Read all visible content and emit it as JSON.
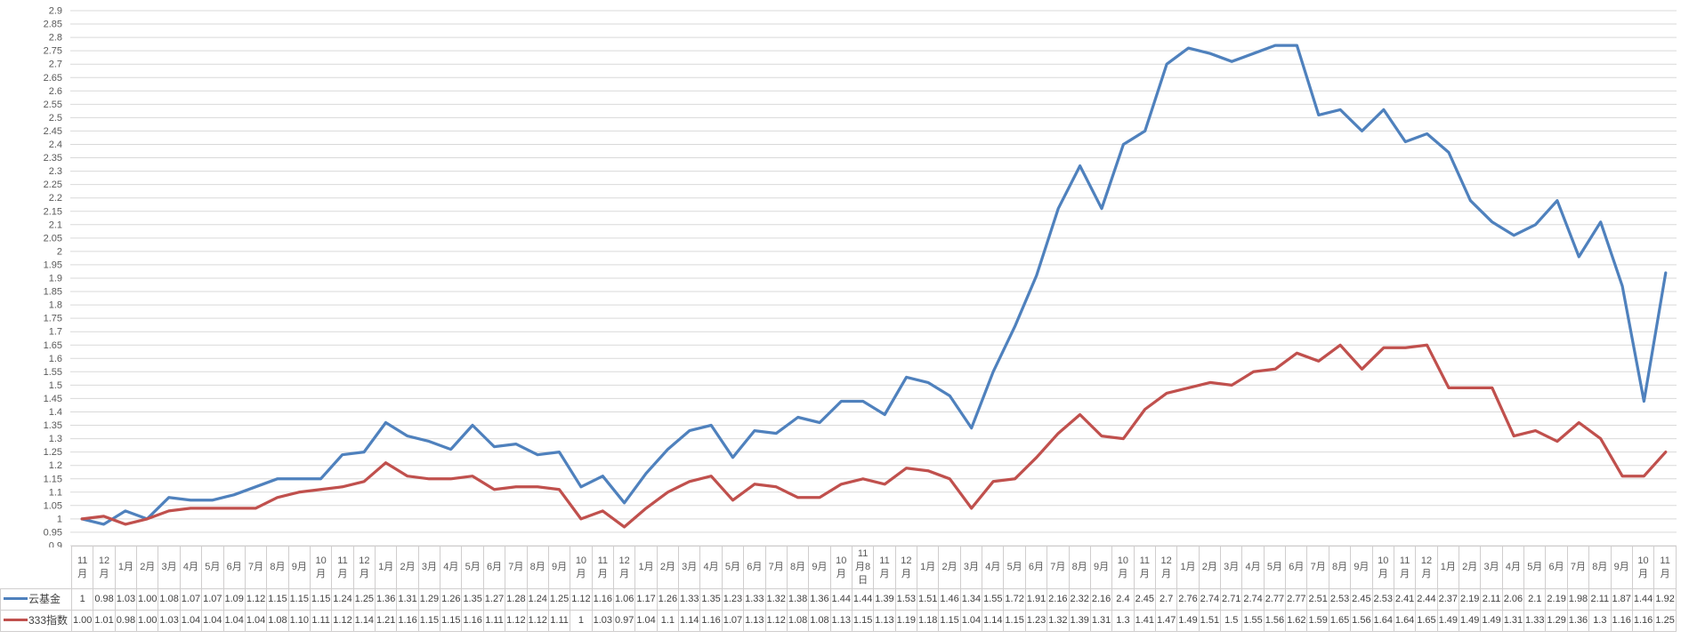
{
  "chart_data": {
    "type": "line",
    "title": "",
    "xlabel": "",
    "ylabel": "",
    "ylim": [
      0.9,
      2.9
    ],
    "ytick_step": 0.05,
    "ytick_labels": [
      "2.9",
      "2.85",
      "2.8",
      "2.75",
      "2.7",
      "2.65",
      "2.6",
      "2.55",
      "2.5",
      "2.45",
      "2.4",
      "2.35",
      "2.3",
      "2.25",
      "2.2",
      "2.15",
      "2.1",
      "2.05",
      "2",
      "1.95",
      "1.9",
      "1.85",
      "1.8",
      "1.75",
      "1.7",
      "1.65",
      "1.6",
      "1.55",
      "1.5",
      "1.45",
      "1.4",
      "1.35",
      "1.3",
      "1.25",
      "1.2",
      "1.15",
      "1.1",
      "1.05",
      "1",
      "0.95",
      "0.9"
    ],
    "grid": "horizontal",
    "grid_color": "#D9D9D9",
    "axis_label_color": "#595959",
    "table_border_color": "#D0CECE",
    "table_text_color": "#404040",
    "legend_position": "data-table-left",
    "categories": [
      "11月",
      "12月",
      "1月",
      "2月",
      "3月",
      "4月",
      "5月",
      "6月",
      "7月",
      "8月",
      "9月",
      "10月",
      "11月",
      "12月",
      "1月",
      "2月",
      "3月",
      "4月",
      "5月",
      "6月",
      "7月",
      "8月",
      "9月",
      "10月",
      "11月",
      "12月",
      "1月",
      "2月",
      "3月",
      "4月",
      "5月",
      "6月",
      "7月",
      "8月",
      "9月",
      "10月",
      "11月8日",
      "11月",
      "12月",
      "1月",
      "2月",
      "3月",
      "4月",
      "5月",
      "6月",
      "7月",
      "8月",
      "9月",
      "10月",
      "11月",
      "12月",
      "1月",
      "2月",
      "3月",
      "4月",
      "5月",
      "6月",
      "7月",
      "8月",
      "9月",
      "10月",
      "11月",
      "12月",
      "1月",
      "2月",
      "3月",
      "4月",
      "5月",
      "6月",
      "7月",
      "8月",
      "9月",
      "10月",
      "11月"
    ],
    "series": [
      {
        "name": "云基金",
        "color": "#4F81BD",
        "values": [
          "1",
          "0.98",
          "1.03",
          "1.00",
          "1.08",
          "1.07",
          "1.07",
          "1.09",
          "1.12",
          "1.15",
          "1.15",
          "1.15",
          "1.24",
          "1.25",
          "1.36",
          "1.31",
          "1.29",
          "1.26",
          "1.35",
          "1.27",
          "1.28",
          "1.24",
          "1.25",
          "1.12",
          "1.16",
          "1.06",
          "1.17",
          "1.26",
          "1.33",
          "1.35",
          "1.23",
          "1.33",
          "1.32",
          "1.38",
          "1.36",
          "1.44",
          "1.44",
          "1.39",
          "1.53",
          "1.51",
          "1.46",
          "1.34",
          "1.55",
          "1.72",
          "1.91",
          "2.16",
          "2.32",
          "2.16",
          "2.4",
          "2.45",
          "2.7",
          "2.76",
          "2.74",
          "2.71",
          "2.74",
          "2.77",
          "2.77",
          "2.51",
          "2.53",
          "2.45",
          "2.53",
          "2.41",
          "2.44",
          "2.37",
          "2.19",
          "2.11",
          "2.06",
          "2.1",
          "2.19",
          "1.98",
          "2.11",
          "1.87",
          "1.44",
          "1.92"
        ]
      },
      {
        "name": "333指数",
        "color": "#C0504D",
        "values": [
          "1.00",
          "1.01",
          "0.98",
          "1.00",
          "1.03",
          "1.04",
          "1.04",
          "1.04",
          "1.04",
          "1.08",
          "1.10",
          "1.11",
          "1.12",
          "1.14",
          "1.21",
          "1.16",
          "1.15",
          "1.15",
          "1.16",
          "1.11",
          "1.12",
          "1.12",
          "1.11",
          "1",
          "1.03",
          "0.97",
          "1.04",
          "1.1",
          "1.14",
          "1.16",
          "1.07",
          "1.13",
          "1.12",
          "1.08",
          "1.08",
          "1.13",
          "1.15",
          "1.13",
          "1.19",
          "1.18",
          "1.15",
          "1.04",
          "1.14",
          "1.15",
          "1.23",
          "1.32",
          "1.39",
          "1.31",
          "1.3",
          "1.41",
          "1.47",
          "1.49",
          "1.51",
          "1.5",
          "1.55",
          "1.56",
          "1.62",
          "1.59",
          "1.65",
          "1.56",
          "1.64",
          "1.64",
          "1.65",
          "1.49",
          "1.49",
          "1.49",
          "1.31",
          "1.33",
          "1.29",
          "1.36",
          "1.3",
          "1.16",
          "1.16",
          "1.25"
        ]
      }
    ]
  }
}
